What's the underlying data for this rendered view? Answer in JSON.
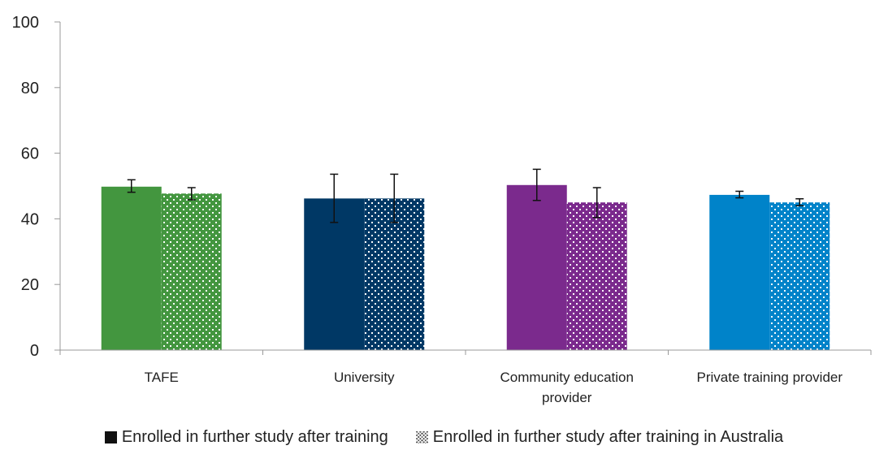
{
  "chart_data": {
    "type": "bar",
    "categories": [
      "TAFE",
      "University",
      "Community education provider",
      "Private training provider"
    ],
    "category_lines": [
      [
        "TAFE"
      ],
      [
        "University"
      ],
      [
        "Community education",
        "provider"
      ],
      [
        "Private training provider"
      ]
    ],
    "colors": [
      "#43963f",
      "#003865",
      "#7b2a8d",
      "#0083c9"
    ],
    "ylim": [
      0,
      100
    ],
    "yticks": [
      0,
      20,
      40,
      60,
      80,
      100
    ],
    "series": [
      {
        "name": "Enrolled in further study after training",
        "fill": "solid",
        "values": [
          49.8,
          46.2,
          50.3,
          47.3
        ],
        "error_low": [
          48.1,
          38.9,
          45.6,
          46.4
        ],
        "error_high": [
          51.9,
          53.6,
          55.1,
          48.4
        ]
      },
      {
        "name": "Enrolled in further study after training in Australia",
        "fill": "pattern",
        "values": [
          47.7,
          46.2,
          45.0,
          45.0
        ],
        "error_low": [
          45.8,
          38.9,
          40.4,
          44.0
        ],
        "error_high": [
          49.5,
          53.6,
          49.5,
          46.1
        ]
      }
    ],
    "legend_position": "bottom",
    "grid": false
  }
}
